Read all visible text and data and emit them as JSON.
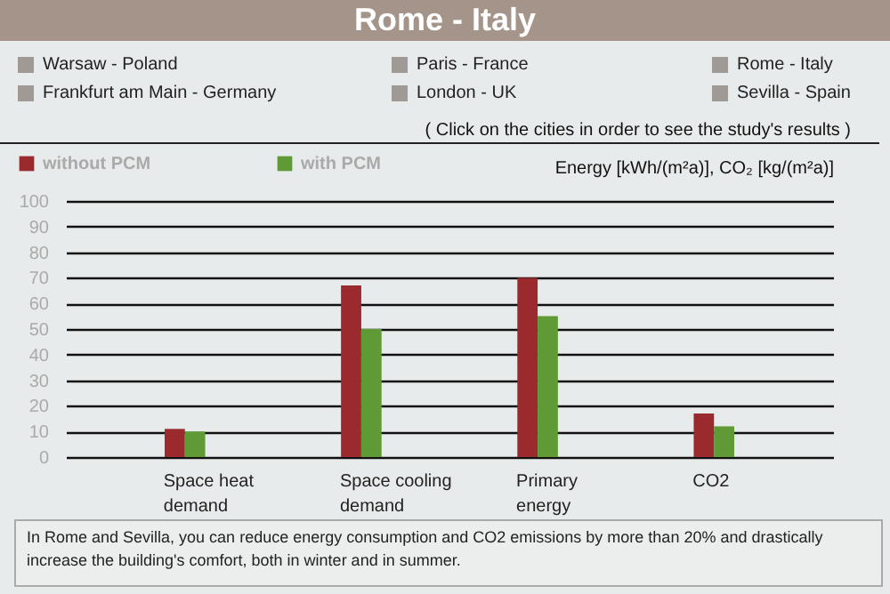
{
  "chart_data": {
    "type": "bar",
    "title": "Rome - Italy",
    "ylabel": "Energy [kWh/(m²a)], CO₂ [kg/(m²a)]",
    "categories": [
      "Space heat demand",
      "Space cooling demand",
      "Primary energy",
      "CO2"
    ],
    "series": [
      {
        "name": "without PCM",
        "color": "#9b2a2f",
        "values": [
          11,
          67,
          70,
          17
        ]
      },
      {
        "name": "with PCM",
        "color": "#5f9a36",
        "values": [
          10,
          50,
          55,
          12
        ]
      }
    ],
    "ylim": [
      0,
      100
    ],
    "yticks": [
      0,
      10,
      20,
      30,
      40,
      50,
      60,
      70,
      80,
      90,
      100
    ],
    "grid": "y",
    "legend": "top left",
    "annotations": [
      "Warsaw - Poland",
      "Paris - France",
      "Rome - Italy",
      "Frankfurt am Main - Germany",
      "London - UK",
      "Sevilla - Spain",
      "( Click on the cities in order to see the study's results )",
      "In Rome and Sevilla, you can reduce energy consumption and CO2 emissions by more than 20% and drastically increase the building's comfort, both in winter and in summer."
    ]
  }
}
